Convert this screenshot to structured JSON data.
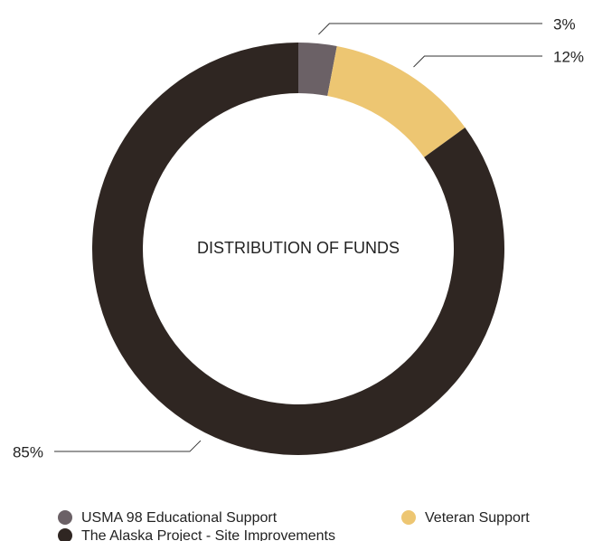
{
  "chart_data": {
    "type": "donut",
    "title": "DISTRIBUTION OF FUNDS",
    "categories": [
      "USMA 98 Educational Support",
      "Veteran Support",
      "The Alaska Project - Site Improvements"
    ],
    "values": [
      3,
      12,
      85
    ],
    "value_labels": [
      "3%",
      "12%",
      "85%"
    ],
    "colors": [
      "#6b6166",
      "#edc672",
      "#2f2622"
    ]
  }
}
